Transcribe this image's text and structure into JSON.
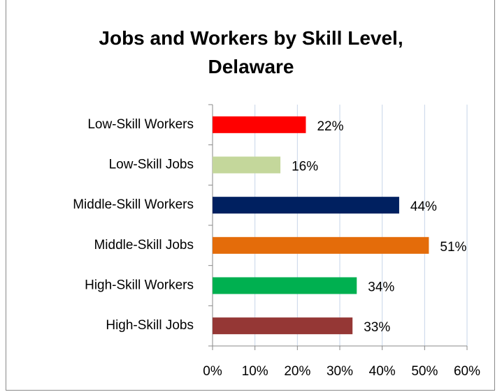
{
  "chart_data": {
    "type": "bar",
    "orientation": "horizontal",
    "title": "Jobs and Workers by Skill Level, Delaware",
    "categories": [
      "Low-Skill Workers",
      "Low-Skill Jobs",
      "Middle-Skill Workers",
      "Middle-Skill Jobs",
      "High-Skill Workers",
      "High-Skill Jobs"
    ],
    "values": [
      22,
      16,
      44,
      51,
      34,
      33
    ],
    "value_labels": [
      "22%",
      "16%",
      "44%",
      "51%",
      "34%",
      "33%"
    ],
    "colors": [
      "#ff0000",
      "#c4d79b",
      "#002060",
      "#e46c0a",
      "#00b050",
      "#953735"
    ],
    "xlim": [
      0,
      60
    ],
    "xticks": [
      {
        "value": 0,
        "label": "0%"
      },
      {
        "value": 10,
        "label": "10%"
      },
      {
        "value": 20,
        "label": "20%"
      },
      {
        "value": 30,
        "label": "30%"
      },
      {
        "value": 40,
        "label": "40%"
      },
      {
        "value": 50,
        "label": "50%"
      },
      {
        "value": 60,
        "label": "60%"
      }
    ],
    "grid": true
  }
}
